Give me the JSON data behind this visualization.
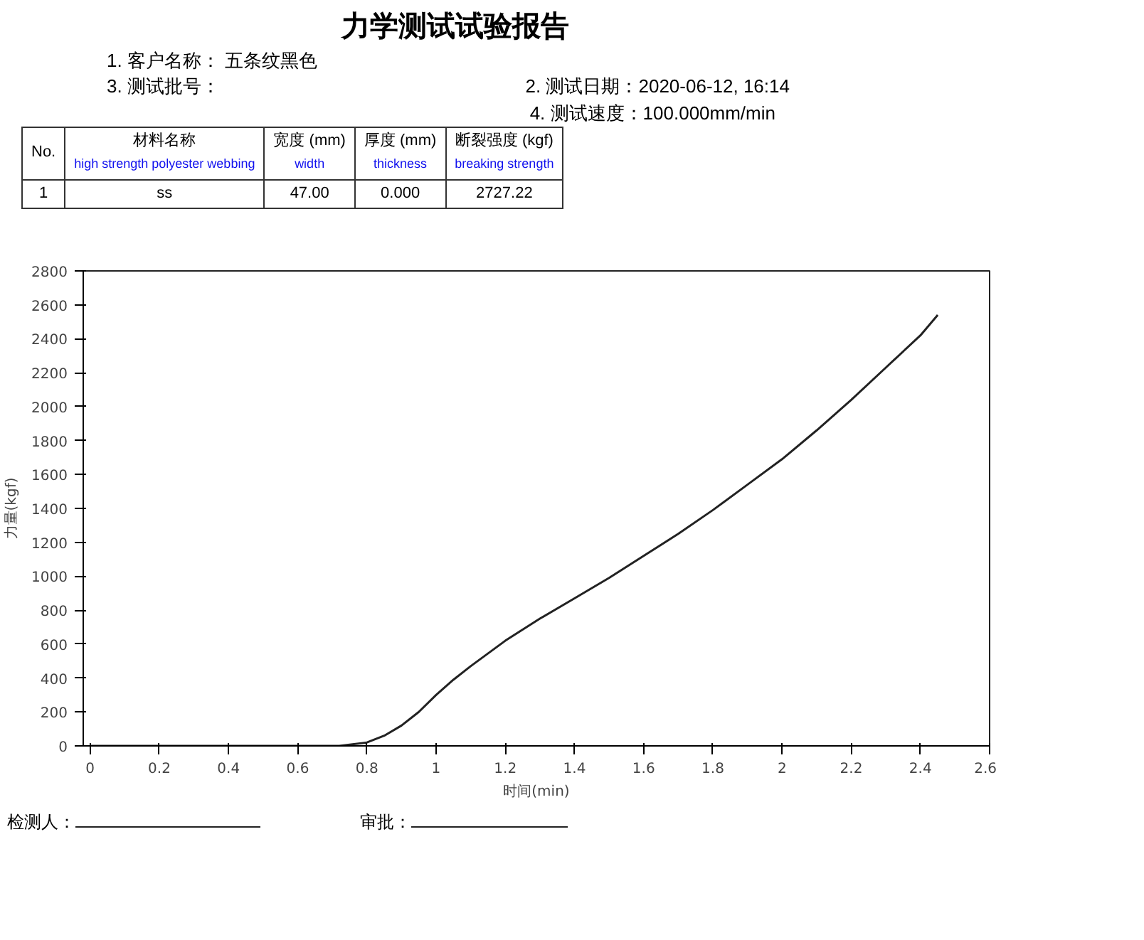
{
  "chart_data": {
    "type": "line",
    "title": "力学测试试验报告",
    "xlabel": "时间(min)",
    "ylabel": "力量(kgf)",
    "annotations": [
      "1. 客户名称：  五条纹黑色",
      "3. 测试批号：",
      "2. 测试日期：2020-06-12, 16:14",
      "4. 测试速度：100.000mm/min",
      "No.",
      "材料名称",
      "宽度 (mm)",
      "厚度 (mm)",
      "断裂强度 (kgf)",
      "high strength polyester webbing",
      "width",
      "thickness",
      "breaking strength",
      "1",
      "ss",
      "47.00",
      "0.000",
      "2727.22",
      "检测人：",
      "审批："
    ],
    "x": [
      0,
      0.72,
      0.8,
      0.85,
      0.9,
      0.95,
      1.0,
      1.05,
      1.1,
      1.2,
      1.3,
      1.4,
      1.5,
      1.6,
      1.7,
      1.8,
      1.9,
      2.0,
      2.1,
      2.2,
      2.3,
      2.4,
      2.45
    ],
    "series": [
      {
        "color": "#222222",
        "values": [
          0,
          0,
          20,
          60,
          120,
          200,
          300,
          390,
          470,
          620,
          750,
          870,
          990,
          1120,
          1250,
          1390,
          1540,
          1690,
          1860,
          2040,
          2230,
          2420,
          2540
        ]
      }
    ],
    "xlim": [
      -0.02,
      2.6
    ],
    "ylim": [
      0,
      2800
    ],
    "xticks": [
      0,
      0.2,
      0.4,
      0.6,
      0.8,
      1,
      1.2,
      1.4,
      1.6,
      1.8,
      2,
      2.2,
      2.4,
      2.6
    ],
    "yticks": [
      0,
      200,
      400,
      600,
      800,
      1000,
      1200,
      1400,
      1600,
      1800,
      2000,
      2200,
      2400,
      2600,
      2800
    ],
    "grid": false,
    "marker": "none",
    "line_style": "solid"
  }
}
